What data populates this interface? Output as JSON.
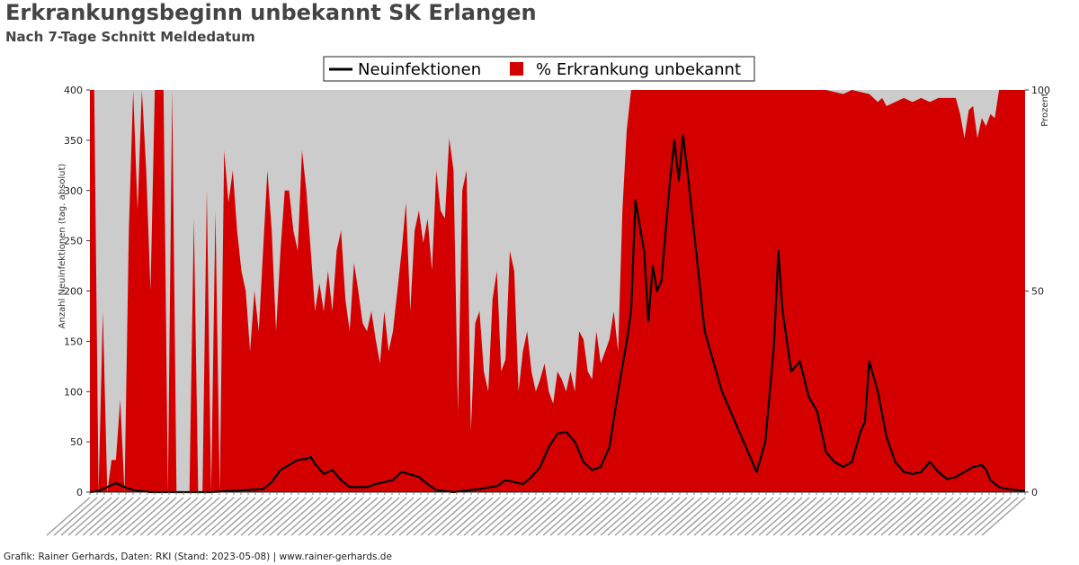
{
  "title": "Erkrankungsbeginn unbekannt SK Erlangen",
  "subtitle": "Nach 7-Tage Schnitt Meldedatum",
  "footer": "Grafik: Rainer Gerhards, Daten: RKI (Stand: 2023-05-08) | www.rainer-gerhards.de",
  "colors": {
    "plot_bg": "#cccccc",
    "percent_fill": "#d40000",
    "line": "#000000"
  },
  "chart_data": {
    "type": "area",
    "title": "Erkrankungsbeginn unbekannt SK Erlangen",
    "subtitle": "Nach 7-Tage Schnitt Meldedatum",
    "legend": [
      "Neuinfektionen",
      "% Erkrankung unbekannt"
    ],
    "legend_position": "top-center",
    "ylabel_left": "Anzahl Neuinfektionen (tag. absolut)",
    "ylabel_right": "Prozent",
    "ylim_left": [
      0,
      400
    ],
    "ylim_right": [
      0,
      100
    ],
    "yticks_left": [
      0,
      50,
      100,
      150,
      200,
      250,
      300,
      350,
      400
    ],
    "yticks_right": [
      0,
      50,
      100
    ],
    "x_range": [
      "2020-03",
      "2023-05"
    ],
    "grid": false,
    "series": [
      {
        "name": "Neuinfektionen",
        "axis": "left",
        "kind": "line",
        "points": [
          [
            0,
            0
          ],
          [
            0.01,
            1
          ],
          [
            0.02,
            5
          ],
          [
            0.03,
            9
          ],
          [
            0.04,
            5
          ],
          [
            0.05,
            2
          ],
          [
            0.07,
            0
          ],
          [
            0.14,
            0
          ],
          [
            0.16,
            1
          ],
          [
            0.18,
            2
          ],
          [
            0.2,
            3
          ],
          [
            0.21,
            10
          ],
          [
            0.22,
            22
          ],
          [
            0.23,
            27
          ],
          [
            0.24,
            32
          ],
          [
            0.25,
            33
          ],
          [
            0.255,
            35
          ],
          [
            0.26,
            28
          ],
          [
            0.27,
            18
          ],
          [
            0.28,
            22
          ],
          [
            0.29,
            12
          ],
          [
            0.3,
            5
          ],
          [
            0.32,
            5
          ],
          [
            0.33,
            8
          ],
          [
            0.35,
            12
          ],
          [
            0.36,
            20
          ],
          [
            0.38,
            15
          ],
          [
            0.39,
            8
          ],
          [
            0.4,
            2
          ],
          [
            0.42,
            0
          ],
          [
            0.43,
            1
          ],
          [
            0.45,
            3
          ],
          [
            0.47,
            6
          ],
          [
            0.48,
            12
          ],
          [
            0.49,
            10
          ],
          [
            0.5,
            8
          ],
          [
            0.51,
            15
          ],
          [
            0.52,
            25
          ],
          [
            0.53,
            45
          ],
          [
            0.54,
            58
          ],
          [
            0.55,
            60
          ],
          [
            0.56,
            50
          ],
          [
            0.57,
            30
          ],
          [
            0.58,
            22
          ],
          [
            0.59,
            25
          ],
          [
            0.6,
            45
          ],
          [
            0.61,
            100
          ],
          [
            0.62,
            150
          ],
          [
            0.625,
            180
          ],
          [
            0.63,
            290
          ],
          [
            0.64,
            240
          ],
          [
            0.645,
            170
          ],
          [
            0.65,
            225
          ],
          [
            0.655,
            200
          ],
          [
            0.66,
            210
          ],
          [
            0.67,
            310
          ],
          [
            0.675,
            350
          ],
          [
            0.68,
            310
          ],
          [
            0.685,
            355
          ],
          [
            0.69,
            320
          ],
          [
            0.7,
            240
          ],
          [
            0.71,
            160
          ],
          [
            0.72,
            130
          ],
          [
            0.73,
            100
          ],
          [
            0.74,
            80
          ],
          [
            0.75,
            60
          ],
          [
            0.76,
            40
          ],
          [
            0.77,
            20
          ],
          [
            0.78,
            50
          ],
          [
            0.79,
            145
          ],
          [
            0.795,
            240
          ],
          [
            0.8,
            180
          ],
          [
            0.81,
            120
          ],
          [
            0.82,
            130
          ],
          [
            0.83,
            95
          ],
          [
            0.84,
            80
          ],
          [
            0.85,
            40
          ],
          [
            0.86,
            30
          ],
          [
            0.87,
            25
          ],
          [
            0.88,
            30
          ],
          [
            0.89,
            60
          ],
          [
            0.895,
            70
          ],
          [
            0.9,
            130
          ],
          [
            0.91,
            100
          ],
          [
            0.92,
            55
          ],
          [
            0.93,
            30
          ],
          [
            0.94,
            20
          ],
          [
            0.95,
            18
          ],
          [
            0.96,
            20
          ],
          [
            0.965,
            25
          ],
          [
            0.97,
            30
          ],
          [
            0.98,
            20
          ],
          [
            0.99,
            13
          ],
          [
            1.0,
            15
          ],
          [
            1.01,
            20
          ],
          [
            1.02,
            25
          ],
          [
            1.03,
            27
          ],
          [
            1.035,
            22
          ],
          [
            1.04,
            12
          ],
          [
            1.05,
            5
          ],
          [
            1.06,
            3
          ],
          [
            1.07,
            2
          ],
          [
            1.08,
            1
          ]
        ]
      },
      {
        "name": "% Erkrankung unbekannt",
        "axis": "right",
        "kind": "area",
        "points": [
          [
            0,
            100
          ],
          [
            0.005,
            100
          ],
          [
            0.01,
            0
          ],
          [
            0.015,
            45
          ],
          [
            0.02,
            0
          ],
          [
            0.025,
            8
          ],
          [
            0.03,
            8
          ],
          [
            0.035,
            23
          ],
          [
            0.04,
            0
          ],
          [
            0.045,
            65
          ],
          [
            0.05,
            100
          ],
          [
            0.055,
            70
          ],
          [
            0.06,
            100
          ],
          [
            0.065,
            80
          ],
          [
            0.07,
            50
          ],
          [
            0.075,
            100
          ],
          [
            0.08,
            100
          ],
          [
            0.085,
            100
          ],
          [
            0.09,
            0
          ],
          [
            0.095,
            100
          ],
          [
            0.1,
            0
          ],
          [
            0.105,
            0
          ],
          [
            0.11,
            0
          ],
          [
            0.115,
            0
          ],
          [
            0.12,
            68
          ],
          [
            0.125,
            0
          ],
          [
            0.13,
            0
          ],
          [
            0.135,
            75
          ],
          [
            0.14,
            0
          ],
          [
            0.145,
            70
          ],
          [
            0.15,
            0
          ],
          [
            0.155,
            85
          ],
          [
            0.16,
            72
          ],
          [
            0.165,
            80
          ],
          [
            0.17,
            65
          ],
          [
            0.175,
            55
          ],
          [
            0.18,
            50
          ],
          [
            0.185,
            35
          ],
          [
            0.19,
            50
          ],
          [
            0.195,
            40
          ],
          [
            0.2,
            60
          ],
          [
            0.205,
            80
          ],
          [
            0.21,
            65
          ],
          [
            0.215,
            40
          ],
          [
            0.22,
            60
          ],
          [
            0.225,
            75
          ],
          [
            0.23,
            75
          ],
          [
            0.235,
            65
          ],
          [
            0.24,
            60
          ],
          [
            0.245,
            85
          ],
          [
            0.25,
            75
          ],
          [
            0.255,
            60
          ],
          [
            0.26,
            45
          ],
          [
            0.265,
            52
          ],
          [
            0.27,
            45
          ],
          [
            0.275,
            55
          ],
          [
            0.28,
            45
          ],
          [
            0.285,
            60
          ],
          [
            0.29,
            65
          ],
          [
            0.295,
            48
          ],
          [
            0.3,
            40
          ],
          [
            0.305,
            57
          ],
          [
            0.31,
            50
          ],
          [
            0.315,
            42
          ],
          [
            0.32,
            40
          ],
          [
            0.325,
            45
          ],
          [
            0.33,
            38
          ],
          [
            0.335,
            32
          ],
          [
            0.34,
            45
          ],
          [
            0.345,
            35
          ],
          [
            0.35,
            40
          ],
          [
            0.355,
            50
          ],
          [
            0.36,
            60
          ],
          [
            0.365,
            72
          ],
          [
            0.37,
            45
          ],
          [
            0.375,
            65
          ],
          [
            0.38,
            70
          ],
          [
            0.385,
            62
          ],
          [
            0.39,
            68
          ],
          [
            0.395,
            55
          ],
          [
            0.4,
            80
          ],
          [
            0.405,
            70
          ],
          [
            0.41,
            68
          ],
          [
            0.415,
            88
          ],
          [
            0.42,
            80
          ],
          [
            0.425,
            20
          ],
          [
            0.43,
            75
          ],
          [
            0.435,
            80
          ],
          [
            0.44,
            15
          ],
          [
            0.445,
            42
          ],
          [
            0.45,
            45
          ],
          [
            0.455,
            30
          ],
          [
            0.46,
            25
          ],
          [
            0.465,
            48
          ],
          [
            0.47,
            55
          ],
          [
            0.475,
            30
          ],
          [
            0.48,
            33
          ],
          [
            0.485,
            60
          ],
          [
            0.49,
            55
          ],
          [
            0.495,
            25
          ],
          [
            0.5,
            35
          ],
          [
            0.505,
            40
          ],
          [
            0.51,
            30
          ],
          [
            0.515,
            25
          ],
          [
            0.52,
            28
          ],
          [
            0.525,
            32
          ],
          [
            0.53,
            25
          ],
          [
            0.535,
            22
          ],
          [
            0.54,
            30
          ],
          [
            0.545,
            28
          ],
          [
            0.55,
            25
          ],
          [
            0.555,
            30
          ],
          [
            0.56,
            25
          ],
          [
            0.565,
            40
          ],
          [
            0.57,
            38
          ],
          [
            0.575,
            30
          ],
          [
            0.58,
            28
          ],
          [
            0.585,
            40
          ],
          [
            0.59,
            32
          ],
          [
            0.595,
            35
          ],
          [
            0.6,
            38
          ],
          [
            0.605,
            45
          ],
          [
            0.61,
            35
          ],
          [
            0.615,
            70
          ],
          [
            0.62,
            90
          ],
          [
            0.625,
            100
          ],
          [
            0.63,
            100
          ],
          [
            0.7,
            100
          ],
          [
            0.8,
            100
          ],
          [
            0.85,
            100
          ],
          [
            0.87,
            99
          ],
          [
            0.88,
            100
          ],
          [
            0.9,
            99
          ],
          [
            0.91,
            97
          ],
          [
            0.915,
            98
          ],
          [
            0.92,
            96
          ],
          [
            0.93,
            97
          ],
          [
            0.94,
            98
          ],
          [
            0.95,
            97
          ],
          [
            0.96,
            98
          ],
          [
            0.97,
            97
          ],
          [
            0.98,
            98
          ],
          [
            0.99,
            98
          ],
          [
            1.0,
            98
          ],
          [
            1.005,
            94
          ],
          [
            1.01,
            88
          ],
          [
            1.015,
            95
          ],
          [
            1.02,
            96
          ],
          [
            1.025,
            88
          ],
          [
            1.03,
            93
          ],
          [
            1.035,
            91
          ],
          [
            1.04,
            94
          ],
          [
            1.045,
            93
          ],
          [
            1.05,
            100
          ],
          [
            1.06,
            100
          ],
          [
            1.07,
            100
          ],
          [
            1.08,
            100
          ]
        ]
      }
    ]
  }
}
